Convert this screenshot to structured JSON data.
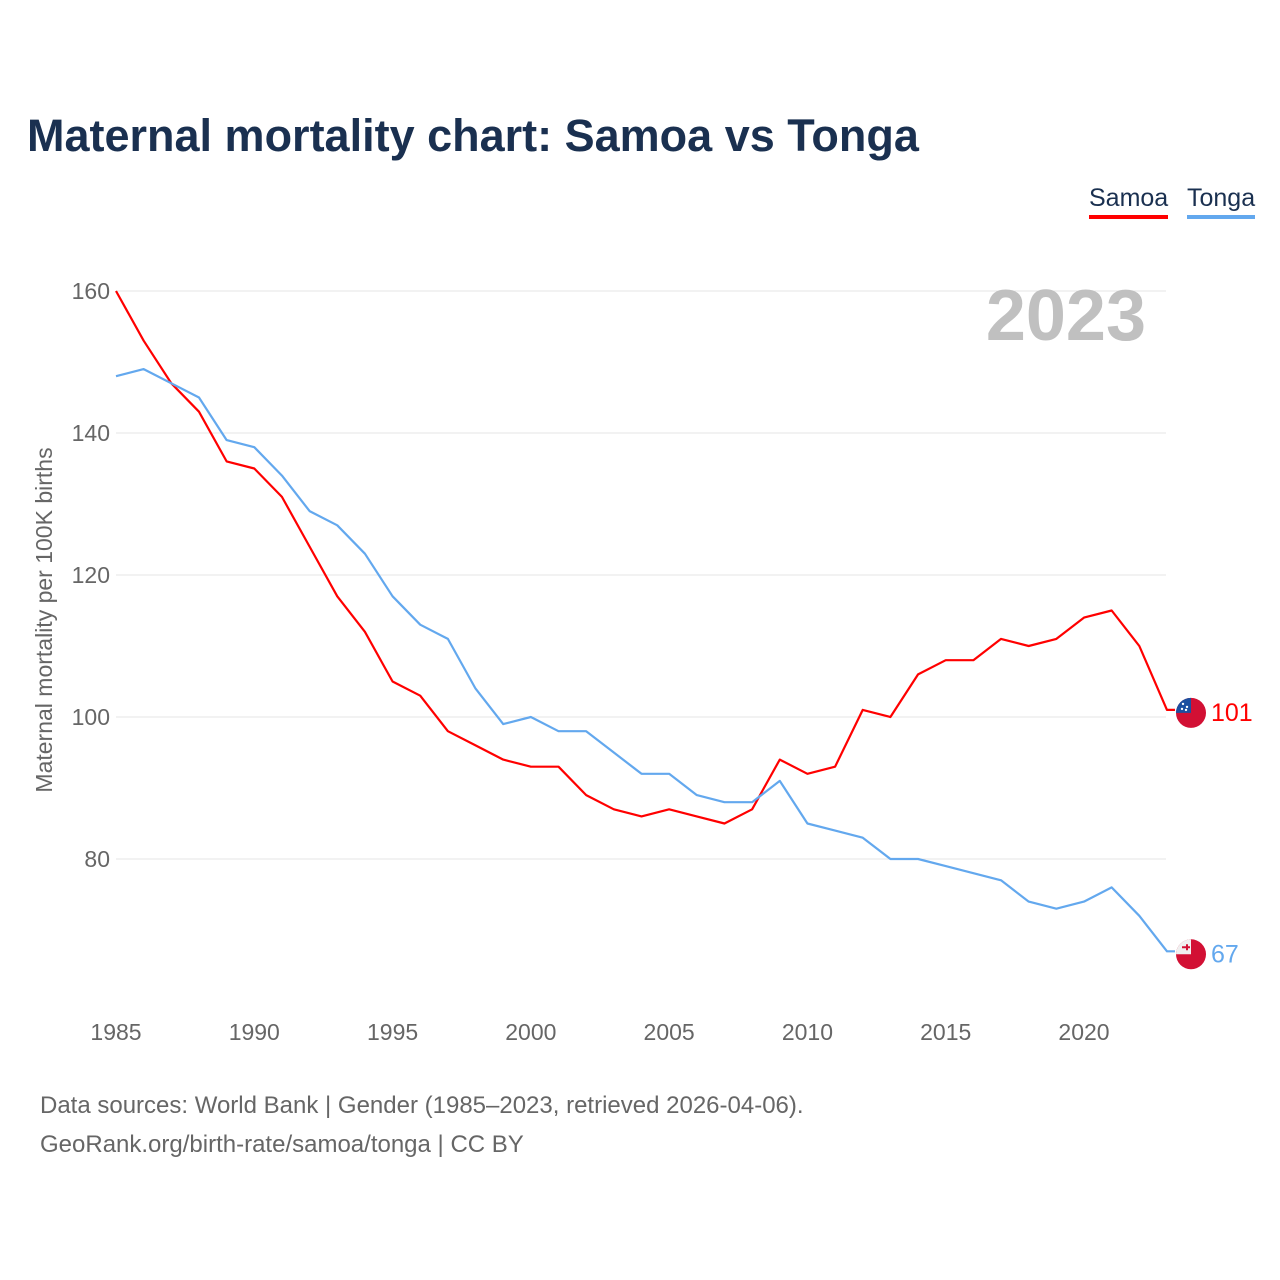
{
  "chart_data": {
    "type": "line",
    "title": "Maternal mortality chart: Samoa vs Tonga",
    "ylabel": "Maternal mortality per 100K births",
    "xlabel": "",
    "year_label": "2023",
    "xlim": [
      1985,
      2024
    ],
    "ylim": [
      60,
      165
    ],
    "x_ticks": [
      1985,
      1990,
      1995,
      2000,
      2005,
      2010,
      2015,
      2020
    ],
    "y_ticks": [
      80,
      100,
      120,
      140,
      160
    ],
    "grid": true,
    "legend_position": "top-right",
    "x": [
      1985,
      1986,
      1987,
      1988,
      1989,
      1990,
      1991,
      1992,
      1993,
      1994,
      1995,
      1996,
      1997,
      1998,
      1999,
      2000,
      2001,
      2002,
      2003,
      2004,
      2005,
      2006,
      2007,
      2008,
      2009,
      2010,
      2011,
      2012,
      2013,
      2014,
      2015,
      2016,
      2017,
      2018,
      2019,
      2020,
      2021,
      2022,
      2023
    ],
    "series": [
      {
        "name": "Samoa",
        "color": "#ff0000",
        "end_label": "101",
        "values": [
          160,
          153,
          147,
          143,
          136,
          135,
          131,
          124,
          117,
          112,
          105,
          103,
          98,
          96,
          94,
          93,
          93,
          89,
          87,
          86,
          87,
          86,
          85,
          87,
          94,
          92,
          93,
          101,
          100,
          106,
          108,
          108,
          111,
          110,
          111,
          114,
          115,
          110,
          101
        ]
      },
      {
        "name": "Tonga",
        "color": "#63a8ee",
        "end_label": "67",
        "values": [
          148,
          149,
          147,
          145,
          139,
          138,
          134,
          129,
          127,
          123,
          117,
          113,
          111,
          104,
          99,
          100,
          98,
          98,
          95,
          92,
          92,
          89,
          88,
          88,
          91,
          85,
          84,
          83,
          80,
          80,
          79,
          78,
          77,
          74,
          73,
          74,
          76,
          72,
          67
        ]
      }
    ]
  },
  "footer": {
    "line1": "Data sources: World Bank | Gender (1985–2023, retrieved 2026-04-06).",
    "line2": "GeoRank.org/birth-rate/samoa/tonga | CC BY"
  }
}
